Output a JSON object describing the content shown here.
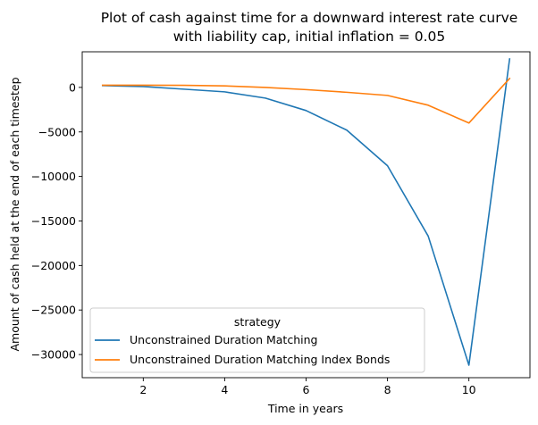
{
  "chart_data": {
    "type": "line",
    "title": "Plot of cash against time for a downward interest rate curve",
    "subtitle": "with liability cap, initial inflation = 0.05",
    "xlabel": "Time in years",
    "ylabel": "Amount of cash held at the end of each timestep",
    "xlim": [
      0.5,
      11.5
    ],
    "ylim": [
      -32600,
      4000
    ],
    "x": [
      1,
      2,
      3,
      4,
      5,
      6,
      7,
      8,
      9,
      10,
      11
    ],
    "x_ticks": [
      2,
      4,
      6,
      8,
      10
    ],
    "y_ticks": [
      0,
      -5000,
      -10000,
      -15000,
      -20000,
      -25000,
      -30000
    ],
    "grid": false,
    "legend": {
      "title": "strategy",
      "placement": "lower-left"
    },
    "series": [
      {
        "name": "Unconstrained Duration Matching",
        "color": "#1f77b4",
        "values": [
          200,
          100,
          -200,
          -500,
          -1200,
          -2600,
          -4800,
          -8800,
          -16700,
          -31200,
          3200
        ]
      },
      {
        "name": "Unconstrained Duration Matching Index Bonds",
        "color": "#ff7f0e",
        "values": [
          250,
          250,
          230,
          170,
          0,
          -250,
          -550,
          -900,
          -2000,
          -4000,
          1000
        ]
      }
    ]
  }
}
